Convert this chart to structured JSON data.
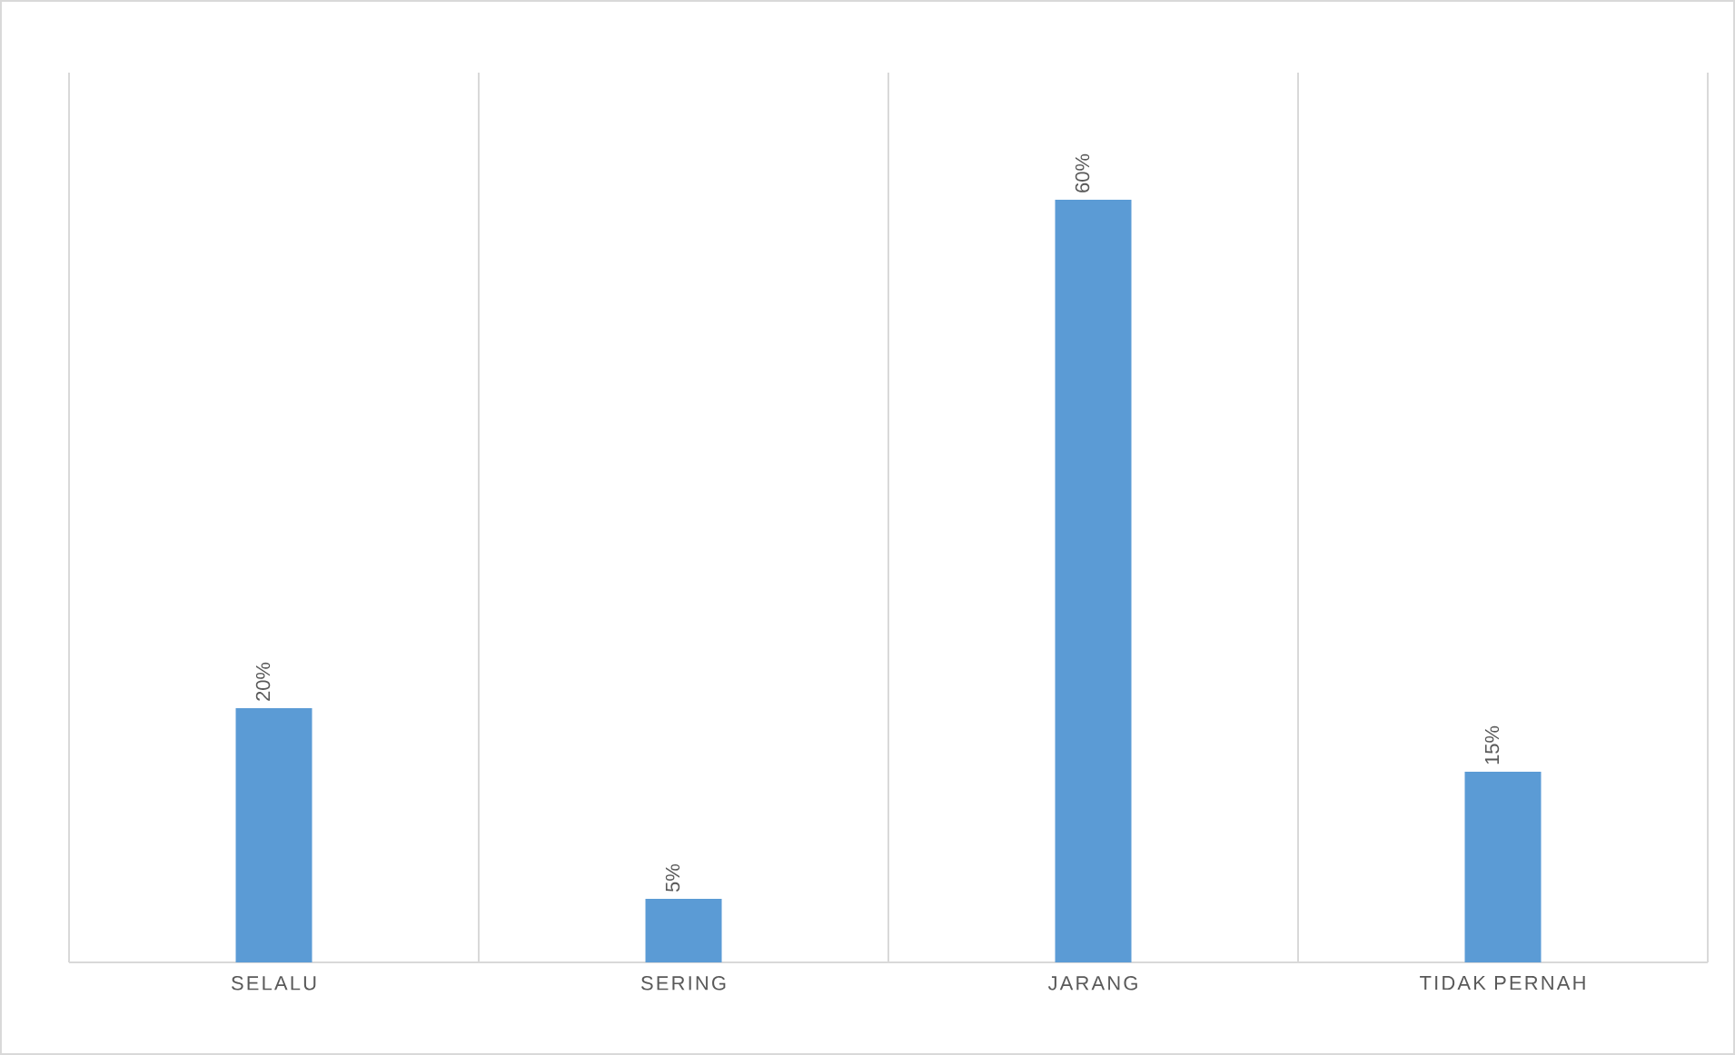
{
  "chart_data": {
    "type": "bar",
    "categories": [
      "SELALU",
      "SERING",
      "JARANG",
      "TIDAK PERNAH"
    ],
    "values": [
      20,
      5,
      60,
      15
    ],
    "color": "#5b9bd5",
    "value_labels": [
      "20%",
      "5%",
      "60%",
      "15%"
    ],
    "grid": "x",
    "tick_labels": "x"
  }
}
